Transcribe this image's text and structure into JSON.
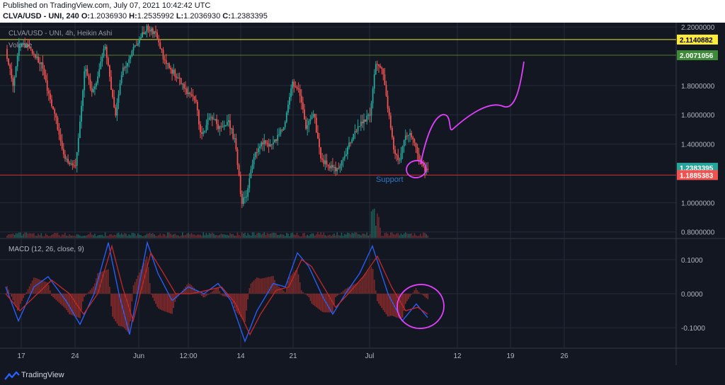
{
  "header": {
    "published": "Published on TradingView.com, July 07, 2021 10:42:42 UTC",
    "symbol": "CLVA/USD - UNI, 240",
    "o_label": "O:",
    "o": "1.2036930",
    "h_label": "H:",
    "h": "1.2535992",
    "l_label": "L:",
    "l": "1.2036930",
    "c_label": "C:",
    "c": "1.2383395"
  },
  "footer": {
    "brand": "TradingView"
  },
  "colors": {
    "background": "#131722",
    "grid": "#262b3a",
    "up": "#26a69a",
    "down": "#ef5350",
    "yellow_line": "#e6e633",
    "green_line": "#5a7a2a",
    "red_line": "#d32f2f",
    "macd": "#2962ff",
    "signal": "#c62828",
    "drawing": "#e040fb",
    "support_text": "#2e78c7"
  },
  "chart_data": [
    {
      "type": "candlestick",
      "legend": [
        "CLVA/USD - UNI, 4h, Heikin Ashi",
        "Volume"
      ],
      "ylim": [
        0.76,
        2.22
      ],
      "yticks": [
        "2.2000000",
        "1.8000000",
        "1.6000000",
        "1.4000000",
        "1.0000000",
        "0.8000000"
      ],
      "ytick_values": [
        2.2,
        1.8,
        1.6,
        1.4,
        1.0,
        0.8
      ],
      "xticks": [
        "17",
        "24",
        "Jun",
        "12:00",
        "14",
        "21",
        "Jul",
        "12",
        "19",
        "26"
      ],
      "price_labels": [
        {
          "text": "2.1140882",
          "value": 2.1140882,
          "bg": "#ffeb3b",
          "fg": "#000000"
        },
        {
          "text": "2.0071056",
          "value": 2.0071056,
          "bg": "#3d8b37",
          "fg": "#ffffff"
        },
        {
          "text": "1.2383395",
          "value": 1.2383395,
          "bg": "#26a69a",
          "fg": "#ffffff"
        },
        {
          "text": "1.1885383",
          "value": 1.1885383,
          "bg": "#ef5350",
          "fg": "#ffffff"
        }
      ],
      "horizontal_lines": [
        2.1140882,
        2.0071056,
        1.1885383
      ],
      "annotations": [
        {
          "text": "Support"
        }
      ],
      "path_closes": [
        [
          0,
          2.05
        ],
        [
          10,
          1.8
        ],
        [
          20,
          2.1
        ],
        [
          35,
          2.05
        ],
        [
          50,
          1.95
        ],
        [
          60,
          1.75
        ],
        [
          70,
          1.6
        ],
        [
          80,
          1.35
        ],
        [
          92,
          1.25
        ],
        [
          98,
          1.24
        ],
        [
          106,
          1.6
        ],
        [
          112,
          1.95
        ],
        [
          122,
          1.75
        ],
        [
          128,
          1.8
        ],
        [
          140,
          2.1
        ],
        [
          148,
          1.8
        ],
        [
          155,
          1.6
        ],
        [
          165,
          1.9
        ],
        [
          180,
          2.05
        ],
        [
          192,
          2.15
        ],
        [
          200,
          2.2
        ],
        [
          212,
          2.15
        ],
        [
          222,
          2.0
        ],
        [
          235,
          1.9
        ],
        [
          245,
          1.85
        ],
        [
          255,
          1.75
        ],
        [
          268,
          1.7
        ],
        [
          276,
          1.45
        ],
        [
          290,
          1.6
        ],
        [
          300,
          1.52
        ],
        [
          315,
          1.55
        ],
        [
          325,
          1.4
        ],
        [
          333,
          1.0
        ],
        [
          340,
          1.05
        ],
        [
          350,
          1.3
        ],
        [
          362,
          1.42
        ],
        [
          375,
          1.38
        ],
        [
          385,
          1.45
        ],
        [
          395,
          1.55
        ],
        [
          405,
          1.82
        ],
        [
          415,
          1.75
        ],
        [
          425,
          1.5
        ],
        [
          435,
          1.62
        ],
        [
          445,
          1.3
        ],
        [
          456,
          1.25
        ],
        [
          466,
          1.22
        ],
        [
          475,
          1.28
        ],
        [
          485,
          1.4
        ],
        [
          495,
          1.5
        ],
        [
          505,
          1.55
        ],
        [
          515,
          1.6
        ],
        [
          522,
          1.95
        ],
        [
          532,
          1.9
        ],
        [
          540,
          1.65
        ],
        [
          548,
          1.35
        ],
        [
          555,
          1.28
        ],
        [
          563,
          1.45
        ],
        [
          572,
          1.48
        ],
        [
          580,
          1.35
        ],
        [
          585,
          1.28
        ],
        [
          592,
          1.22
        ],
        [
          598,
          1.24
        ]
      ]
    },
    {
      "type": "macd",
      "legend": "MACD (12, 26, close, 9)",
      "ylim": [
        -0.16,
        0.16
      ],
      "yticks": [
        "0.1000",
        "0.0000",
        "-0.1000"
      ],
      "ytick_values": [
        0.1,
        0.0,
        -0.1
      ],
      "macd_points": [
        [
          0,
          0.02
        ],
        [
          18,
          -0.08
        ],
        [
          40,
          0.02
        ],
        [
          60,
          0.05
        ],
        [
          85,
          -0.02
        ],
        [
          105,
          -0.09
        ],
        [
          125,
          0.0
        ],
        [
          145,
          0.15
        ],
        [
          160,
          0.0
        ],
        [
          175,
          -0.12
        ],
        [
          200,
          0.15
        ],
        [
          215,
          0.06
        ],
        [
          235,
          -0.02
        ],
        [
          258,
          0.02
        ],
        [
          280,
          0.0
        ],
        [
          300,
          0.03
        ],
        [
          318,
          -0.02
        ],
        [
          338,
          -0.14
        ],
        [
          355,
          -0.05
        ],
        [
          378,
          0.03
        ],
        [
          395,
          0.02
        ],
        [
          412,
          0.12
        ],
        [
          428,
          0.08
        ],
        [
          448,
          -0.01
        ],
        [
          462,
          -0.06
        ],
        [
          480,
          0.0
        ],
        [
          500,
          0.06
        ],
        [
          518,
          0.14
        ],
        [
          540,
          0.0
        ],
        [
          560,
          -0.08
        ],
        [
          580,
          -0.03
        ],
        [
          596,
          -0.07
        ]
      ],
      "signal_points": [
        [
          0,
          0.0
        ],
        [
          20,
          -0.05
        ],
        [
          45,
          0.0
        ],
        [
          65,
          0.04
        ],
        [
          90,
          0.0
        ],
        [
          110,
          -0.06
        ],
        [
          130,
          0.0
        ],
        [
          150,
          0.14
        ],
        [
          165,
          0.02
        ],
        [
          180,
          -0.08
        ],
        [
          205,
          0.12
        ],
        [
          220,
          0.07
        ],
        [
          240,
          0.0
        ],
        [
          262,
          0.0
        ],
        [
          285,
          0.01
        ],
        [
          305,
          0.02
        ],
        [
          325,
          -0.03
        ],
        [
          345,
          -0.12
        ],
        [
          360,
          -0.06
        ],
        [
          382,
          0.01
        ],
        [
          400,
          0.02
        ],
        [
          418,
          0.1
        ],
        [
          432,
          0.08
        ],
        [
          452,
          0.01
        ],
        [
          466,
          -0.04
        ],
        [
          484,
          0.0
        ],
        [
          505,
          0.05
        ],
        [
          525,
          0.11
        ],
        [
          545,
          0.02
        ],
        [
          565,
          -0.05
        ],
        [
          582,
          -0.04
        ],
        [
          596,
          -0.06
        ]
      ]
    }
  ]
}
